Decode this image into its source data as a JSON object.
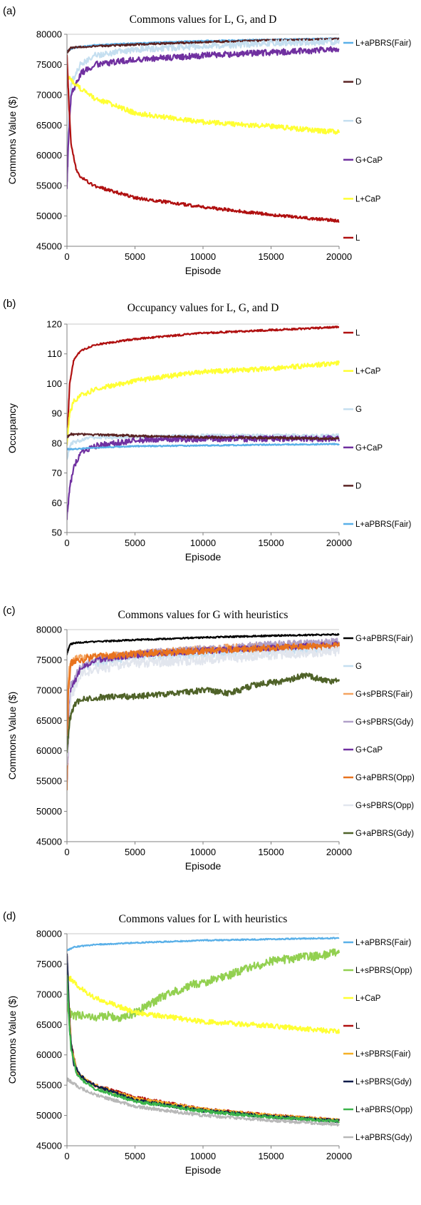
{
  "chart_data": [
    {
      "panel": "(a)",
      "type": "line",
      "title": "Commons values for L, G, and D",
      "xlabel": "Episode",
      "ylabel": "Commons Value ($)",
      "xlim": [
        0,
        20000
      ],
      "ylim": [
        45000,
        80000
      ],
      "xticks": [
        0,
        5000,
        10000,
        15000,
        20000
      ],
      "yticks": [
        45000,
        50000,
        55000,
        60000,
        65000,
        70000,
        75000,
        80000
      ],
      "grid": "horizontal-top",
      "legend": "right",
      "series": [
        {
          "name": "L+aPBRS(Fair)",
          "color": "#5ab0e8",
          "noise": 100,
          "x": [
            0,
            500,
            2000,
            5000,
            10000,
            15000,
            20000
          ],
          "y": [
            77200,
            77800,
            78200,
            78500,
            78900,
            79100,
            79300
          ]
        },
        {
          "name": "D",
          "color": "#5a2323",
          "noise": 150,
          "x": [
            0,
            300,
            2000,
            5000,
            10000,
            15000,
            20000
          ],
          "y": [
            77000,
            77800,
            78000,
            78300,
            78700,
            79000,
            79200
          ]
        },
        {
          "name": "G",
          "color": "#c5dff0",
          "noise": 500,
          "x": [
            0,
            300,
            1000,
            2000,
            5000,
            10000,
            15000,
            20000
          ],
          "y": [
            60000,
            72000,
            75000,
            76500,
            77500,
            78000,
            78500,
            78800
          ]
        },
        {
          "name": "G+CaP",
          "color": "#7030a0",
          "noise": 500,
          "x": [
            0,
            100,
            300,
            1000,
            2000,
            5000,
            10000,
            15000,
            20000
          ],
          "y": [
            55000,
            62000,
            70000,
            73500,
            75000,
            75800,
            76500,
            77000,
            77500
          ]
        },
        {
          "name": "L+CaP",
          "color": "#ffff33",
          "noise": 400,
          "x": [
            0,
            300,
            1000,
            2000,
            5000,
            10000,
            15000,
            20000
          ],
          "y": [
            73000,
            72500,
            71000,
            69500,
            67000,
            65500,
            64800,
            63800
          ]
        },
        {
          "name": "L",
          "color": "#b01010",
          "noise": 250,
          "x": [
            0,
            150,
            300,
            700,
            1000,
            2000,
            5000,
            10000,
            15000,
            20000
          ],
          "y": [
            76500,
            68000,
            62000,
            57500,
            56500,
            55000,
            53000,
            51500,
            50200,
            49200
          ]
        }
      ]
    },
    {
      "panel": "(b)",
      "type": "line",
      "title": "Occupancy values for L, G, and D",
      "xlabel": "Episode",
      "ylabel": "Occupancy",
      "xlim": [
        0,
        20000
      ],
      "ylim": [
        50,
        120
      ],
      "xticks": [
        0,
        5000,
        10000,
        15000,
        20000
      ],
      "yticks": [
        50,
        60,
        70,
        80,
        90,
        100,
        110,
        120
      ],
      "grid": "horizontal-top",
      "legend": "right",
      "series": [
        {
          "name": "L",
          "color": "#b01010",
          "noise": 0.3,
          "x": [
            0,
            200,
            500,
            1000,
            2000,
            5000,
            10000,
            15000,
            20000
          ],
          "y": [
            80,
            100,
            108,
            111,
            113,
            115,
            117,
            118,
            119
          ]
        },
        {
          "name": "L+CaP",
          "color": "#ffff33",
          "noise": 0.8,
          "x": [
            0,
            200,
            500,
            1000,
            2000,
            5000,
            10000,
            15000,
            20000
          ],
          "y": [
            80,
            90,
            94,
            96,
            98,
            101,
            104,
            105,
            107
          ]
        },
        {
          "name": "G",
          "color": "#c5dff0",
          "noise": 0.6,
          "x": [
            0,
            300,
            1000,
            2000,
            5000,
            10000,
            15000,
            20000
          ],
          "y": [
            75,
            80,
            81,
            82,
            82,
            82.5,
            82.5,
            82.5
          ]
        },
        {
          "name": "G+CaP",
          "color": "#7030a0",
          "noise": 1.0,
          "x": [
            0,
            200,
            500,
            1000,
            2000,
            5000,
            10000,
            15000,
            20000
          ],
          "y": [
            55,
            65,
            72,
            77,
            79,
            81,
            81.5,
            81.5,
            81.5
          ]
        },
        {
          "name": "D",
          "color": "#5a2323",
          "noise": 0.35,
          "x": [
            0,
            300,
            1000,
            5000,
            10000,
            15000,
            20000
          ],
          "y": [
            82,
            83,
            83,
            82.5,
            82,
            81.8,
            81.5
          ]
        },
        {
          "name": "L+aPBRS(Fair)",
          "color": "#5ab0e8",
          "noise": 0.2,
          "x": [
            0,
            500,
            2000,
            5000,
            10000,
            15000,
            20000
          ],
          "y": [
            78,
            78,
            78.5,
            79,
            79.2,
            79.5,
            79.7
          ]
        }
      ]
    },
    {
      "panel": "(c)",
      "type": "line",
      "title": "Commons values for G with heuristics",
      "xlabel": "Episode",
      "ylabel": "Commons Value ($)",
      "xlim": [
        0,
        20000
      ],
      "ylim": [
        45000,
        80000
      ],
      "xticks": [
        0,
        5000,
        10000,
        15000,
        20000
      ],
      "yticks": [
        45000,
        50000,
        55000,
        60000,
        65000,
        70000,
        75000,
        80000
      ],
      "grid": "horizontal-top",
      "legend": "right",
      "series": [
        {
          "name": "G+aPBRS(Fair)",
          "color": "#000000",
          "noise": 120,
          "x": [
            0,
            200,
            500,
            2000,
            5000,
            10000,
            15000,
            20000
          ],
          "y": [
            76000,
            77500,
            77800,
            78000,
            78300,
            78700,
            79000,
            79200
          ]
        },
        {
          "name": "G",
          "color": "#c5dff0",
          "noise": 700,
          "x": [
            0,
            300,
            1000,
            2000,
            5000,
            10000,
            15000,
            20000
          ],
          "y": [
            58000,
            70000,
            73500,
            74500,
            75500,
            76000,
            76500,
            77000
          ]
        },
        {
          "name": "G+sPBRS(Fair)",
          "color": "#f4a460",
          "noise": 600,
          "x": [
            0,
            200,
            500,
            1000,
            2000,
            5000,
            10000,
            15000,
            20000
          ],
          "y": [
            68000,
            74000,
            75000,
            75300,
            75500,
            76000,
            76800,
            77300,
            77600
          ]
        },
        {
          "name": "G+sPBRS(Gdy)",
          "color": "#b0a0c8",
          "noise": 600,
          "x": [
            0,
            300,
            1000,
            2000,
            5000,
            10000,
            15000,
            20000
          ],
          "y": [
            60000,
            71000,
            74000,
            75000,
            76000,
            76800,
            77500,
            78000
          ]
        },
        {
          "name": "G+CaP",
          "color": "#7030a0",
          "noise": 500,
          "x": [
            0,
            100,
            300,
            1000,
            2000,
            5000,
            10000,
            15000,
            20000
          ],
          "y": [
            55000,
            62000,
            70000,
            73500,
            75000,
            75800,
            76500,
            77000,
            77500
          ]
        },
        {
          "name": "G+aPBRS(Opp)",
          "color": "#e8731e",
          "noise": 550,
          "x": [
            0,
            100,
            300,
            1000,
            2000,
            5000,
            10000,
            15000,
            20000
          ],
          "y": [
            54000,
            70000,
            74500,
            75000,
            75500,
            76000,
            76500,
            77000,
            77300
          ]
        },
        {
          "name": "G+sPBRS(Opp)",
          "color": "#e2e6ee",
          "noise": 800,
          "x": [
            0,
            300,
            1000,
            2000,
            5000,
            10000,
            15000,
            20000
          ],
          "y": [
            58000,
            69000,
            72500,
            73500,
            74500,
            75000,
            75800,
            76500
          ]
        },
        {
          "name": "G+aPBRS(Gdy)",
          "color": "#4f6228",
          "noise": 500,
          "x": [
            0,
            200,
            500,
            1000,
            2000,
            5000,
            8000,
            10000,
            12000,
            14000,
            16000,
            17500,
            19000,
            20000
          ],
          "y": [
            60000,
            65000,
            67500,
            68500,
            68800,
            69000,
            69500,
            70000,
            69500,
            71000,
            71500,
            72500,
            71500,
            71500
          ]
        }
      ]
    },
    {
      "panel": "(d)",
      "type": "line",
      "title": "Commons values for L with heuristics",
      "xlabel": "Episode",
      "ylabel": "Commons Value ($)",
      "xlim": [
        0,
        20000
      ],
      "ylim": [
        45000,
        80000
      ],
      "xticks": [
        0,
        5000,
        10000,
        15000,
        20000
      ],
      "yticks": [
        45000,
        50000,
        55000,
        60000,
        65000,
        70000,
        75000,
        80000
      ],
      "grid": "horizontal-top",
      "legend": "right",
      "series": [
        {
          "name": "L+aPBRS(Fair)",
          "color": "#5ab0e8",
          "noise": 100,
          "x": [
            0,
            500,
            2000,
            5000,
            10000,
            15000,
            20000
          ],
          "y": [
            77200,
            77800,
            78200,
            78500,
            78900,
            79100,
            79300
          ]
        },
        {
          "name": "L+sPBRS(Opp)",
          "color": "#92d050",
          "noise": 700,
          "x": [
            0,
            200,
            500,
            1000,
            2000,
            3000,
            4000,
            5000,
            7000,
            9000,
            11000,
            13000,
            15000,
            17000,
            19000,
            20000
          ],
          "y": [
            68000,
            67000,
            66500,
            66500,
            66000,
            66500,
            66000,
            67000,
            69500,
            71500,
            72500,
            74000,
            75500,
            76000,
            76500,
            77000
          ]
        },
        {
          "name": "L+CaP",
          "color": "#ffff33",
          "noise": 400,
          "x": [
            0,
            300,
            1000,
            2000,
            5000,
            10000,
            15000,
            20000
          ],
          "y": [
            73000,
            72500,
            71000,
            69500,
            67000,
            65500,
            64800,
            63800
          ]
        },
        {
          "name": "L",
          "color": "#b01010",
          "noise": 250,
          "x": [
            0,
            150,
            300,
            700,
            1000,
            2000,
            5000,
            10000,
            15000,
            20000
          ],
          "y": [
            76500,
            68000,
            62000,
            57500,
            56500,
            55000,
            53000,
            51000,
            50000,
            49200
          ]
        },
        {
          "name": "L+sPBRS(Fair)",
          "color": "#f5b026",
          "noise": 250,
          "x": [
            0,
            150,
            300,
            700,
            1000,
            2000,
            5000,
            10000,
            15000,
            20000
          ],
          "y": [
            74000,
            67000,
            61500,
            57500,
            56500,
            55000,
            52800,
            51000,
            50000,
            49200
          ]
        },
        {
          "name": "L+sPBRS(Gdy)",
          "color": "#0d1b4a",
          "noise": 250,
          "x": [
            0,
            80,
            200,
            500,
            1000,
            2000,
            5000,
            10000,
            15000,
            20000
          ],
          "y": [
            76500,
            72000,
            64000,
            58500,
            56500,
            55000,
            52500,
            50800,
            49800,
            49100
          ]
        },
        {
          "name": "L+aPBRS(Opp)",
          "color": "#3cb44b",
          "noise": 250,
          "x": [
            0,
            150,
            300,
            700,
            1000,
            2000,
            5000,
            10000,
            15000,
            20000
          ],
          "y": [
            73000,
            66000,
            61000,
            57000,
            56000,
            54500,
            52300,
            50700,
            49700,
            49000
          ]
        },
        {
          "name": "L+aPBRS(Gdy)",
          "color": "#b8b8b8",
          "noise": 250,
          "x": [
            0,
            1000,
            2000,
            5000,
            10000,
            15000,
            20000
          ],
          "y": [
            56000,
            54500,
            53500,
            51500,
            50000,
            49200,
            48500
          ]
        }
      ]
    }
  ]
}
